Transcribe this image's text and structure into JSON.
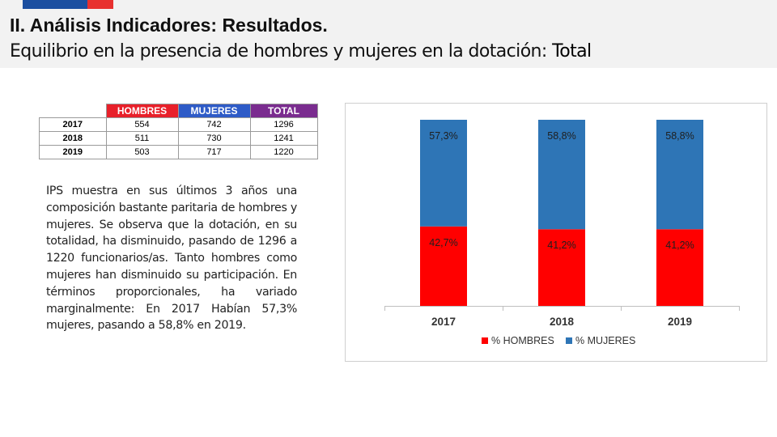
{
  "header": {
    "title": "II. Análisis Indicadores: Resultados.",
    "subtitle_main": "Equilibrio en la presencia de hombres y mujeres en la dotación:",
    "subtitle_bold": "Total"
  },
  "colors": {
    "hombres": "#ff0000",
    "mujeres": "#2e75b6",
    "header_hombres": "#e8202a",
    "header_mujeres": "#2e5bc7",
    "header_total": "#7a2c8f"
  },
  "table": {
    "headers": [
      "HOMBRES",
      "MUJERES",
      "TOTAL"
    ],
    "rows": [
      {
        "year": "2017",
        "hombres": "554",
        "mujeres": "742",
        "total": "1296"
      },
      {
        "year": "2018",
        "hombres": "511",
        "mujeres": "730",
        "total": "1241"
      },
      {
        "year": "2019",
        "hombres": "503",
        "mujeres": "717",
        "total": "1220"
      }
    ]
  },
  "paragraph": "IPS muestra en sus últimos 3 años una composición bastante paritaria de hombres y mujeres. Se observa que la dotación, en su totalidad, ha disminuido, pasando de 1296 a 1220 funcionarios/as. Tanto hombres como mujeres han disminuido su participación. En términos proporcionales, ha variado marginalmente: En 2017 Habían 57,3% mujeres, pasando a 58,8% en 2019.",
  "chart_data": {
    "type": "bar",
    "stacked": true,
    "percent_stacked": true,
    "categories": [
      "2017",
      "2018",
      "2019"
    ],
    "series": [
      {
        "name": "% HOMBRES",
        "values": [
          42.7,
          41.2,
          41.2
        ],
        "labels": [
          "42,7%",
          "41,2%",
          "41,2%"
        ]
      },
      {
        "name": "% MUJERES",
        "values": [
          57.3,
          58.8,
          58.8
        ],
        "labels": [
          "57,3%",
          "58,8%",
          "58,8%"
        ]
      }
    ],
    "ylim": [
      0,
      100
    ],
    "legend_position": "bottom",
    "title": "",
    "xlabel": "",
    "ylabel": ""
  }
}
